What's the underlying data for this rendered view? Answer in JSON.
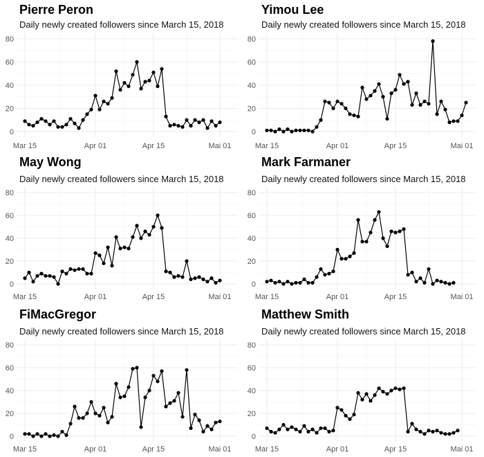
{
  "chart_data": [
    {
      "type": "line",
      "title": "Pierre Peron",
      "subtitle": "Daily newly created followers since March 15, 2018",
      "x_start": "2018-03-15",
      "xticks": [
        "Mar 15",
        "Apr 01",
        "Apr 15",
        "Mai 01"
      ],
      "ylim": [
        0,
        80
      ],
      "yticks": [
        0,
        20,
        40,
        60,
        80
      ],
      "grid": true,
      "values": [
        9,
        6,
        5,
        8,
        11,
        9,
        6,
        9,
        4,
        4,
        6,
        11,
        7,
        3,
        10,
        15,
        19,
        31,
        19,
        26,
        24,
        29,
        52,
        36,
        42,
        39,
        49,
        60,
        37,
        43,
        44,
        51,
        39,
        54,
        13,
        5,
        6,
        5,
        4,
        10,
        5,
        10,
        8,
        10,
        3,
        9,
        5,
        8
      ]
    },
    {
      "type": "line",
      "title": "Yimou Lee",
      "subtitle": "Daily newly created followers since March 15, 2018",
      "x_start": "2018-03-15",
      "xticks": [
        "Mar 15",
        "Apr 01",
        "Apr 15",
        "Mai 01"
      ],
      "ylim": [
        0,
        80
      ],
      "yticks": [
        0,
        20,
        40,
        60,
        80
      ],
      "grid": true,
      "values": [
        1,
        1,
        0,
        2,
        0,
        2,
        0,
        1,
        1,
        1,
        1,
        0,
        4,
        10,
        26,
        25,
        20,
        26,
        24,
        20,
        15,
        14,
        13,
        38,
        28,
        31,
        35,
        41,
        30,
        11,
        33,
        36,
        49,
        41,
        43,
        23,
        33,
        23,
        26,
        24,
        78,
        15,
        26,
        19,
        8,
        9,
        9,
        14,
        25
      ]
    },
    {
      "type": "line",
      "title": "May Wong",
      "subtitle": "Daily newly created followers since March 15, 2018",
      "x_start": "2018-03-15",
      "xticks": [
        "Mar 15",
        "Apr 01",
        "Apr 15",
        "Mai 01"
      ],
      "ylim": [
        0,
        80
      ],
      "yticks": [
        0,
        20,
        40,
        60,
        80
      ],
      "grid": true,
      "values": [
        5,
        10,
        2,
        7,
        9,
        7,
        7,
        6,
        0,
        11,
        9,
        13,
        12,
        13,
        13,
        9,
        9,
        27,
        25,
        18,
        32,
        16,
        41,
        31,
        32,
        31,
        41,
        51,
        40,
        46,
        43,
        50,
        60,
        49,
        11,
        10,
        6,
        7,
        6,
        20,
        4,
        5,
        6,
        4,
        2,
        5,
        1,
        3
      ]
    },
    {
      "type": "line",
      "title": "Mark Farmaner",
      "subtitle": "Daily newly created followers since March 15, 2018",
      "x_start": "2018-03-15",
      "xticks": [
        "Mar 15",
        "Apr 01",
        "Apr 15",
        "Mai 01"
      ],
      "ylim": [
        0,
        80
      ],
      "yticks": [
        0,
        20,
        40,
        60,
        80
      ],
      "grid": true,
      "values": [
        2,
        3,
        1,
        2,
        0,
        2,
        0,
        1,
        1,
        4,
        1,
        1,
        6,
        13,
        8,
        9,
        11,
        30,
        22,
        22,
        24,
        27,
        56,
        37,
        37,
        45,
        56,
        63,
        40,
        33,
        46,
        45,
        46,
        48,
        8,
        10,
        2,
        5,
        1,
        13,
        0,
        3,
        2,
        1,
        0,
        1
      ]
    },
    {
      "type": "line",
      "title": "FiMacGregor",
      "subtitle": "Daily newly created followers since March 15, 2018",
      "x_start": "2018-03-15",
      "xticks": [
        "Mar 15",
        "Apr 01",
        "Apr 15",
        "Mai 01"
      ],
      "ylim": [
        0,
        80
      ],
      "yticks": [
        0,
        20,
        40,
        60,
        80
      ],
      "grid": true,
      "values": [
        2,
        2,
        0,
        2,
        0,
        2,
        0,
        1,
        0,
        4,
        1,
        11,
        26,
        16,
        16,
        20,
        30,
        20,
        18,
        25,
        12,
        17,
        46,
        34,
        35,
        43,
        59,
        60,
        8,
        34,
        40,
        53,
        48,
        57,
        26,
        29,
        31,
        38,
        17,
        58,
        7,
        19,
        14,
        4,
        9,
        6,
        12,
        13
      ]
    },
    {
      "type": "line",
      "title": "Matthew Smith",
      "subtitle": "Daily newly created followers since March 15, 2018",
      "x_start": "2018-03-15",
      "xticks": [
        "Mar 15",
        "Apr 01",
        "Apr 15",
        "Mai 01"
      ],
      "ylim": [
        0,
        80
      ],
      "yticks": [
        0,
        20,
        40,
        60,
        80
      ],
      "grid": true,
      "values": [
        7,
        4,
        3,
        6,
        10,
        6,
        8,
        6,
        4,
        9,
        4,
        6,
        3,
        7,
        7,
        4,
        5,
        25,
        23,
        18,
        15,
        19,
        38,
        32,
        37,
        31,
        36,
        42,
        39,
        37,
        40,
        42,
        41,
        42,
        4,
        11,
        6,
        4,
        2,
        5,
        4,
        5,
        3,
        2,
        2,
        3,
        5
      ]
    }
  ]
}
